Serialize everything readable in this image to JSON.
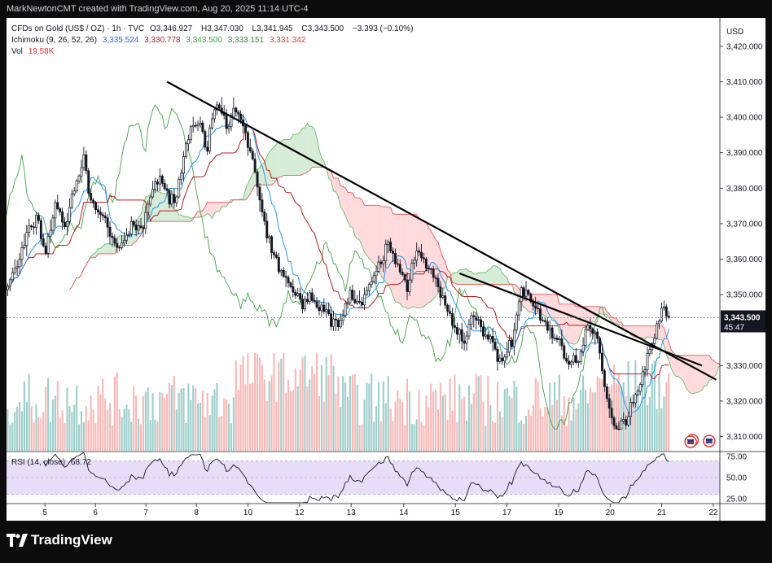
{
  "header": {
    "attribution": "MarkNewtonCMT created with TradingView.com, Aug 20, 2025 11:14 UTC-4"
  },
  "symbol": {
    "name": "CFDs on Gold (US$ / OZ) · 1h · TVC",
    "open_label": "O",
    "open": "3,346.927",
    "high_label": "H",
    "high": "3,347.030",
    "low_label": "L",
    "low": "3,341.945",
    "close_label": "C",
    "close": "3,343.500",
    "change": "−3.393 (−0.10%)"
  },
  "ichimoku": {
    "label": "Ichimoku (9, 26, 52, 26)",
    "values": [
      "3,335.524",
      "3,330.778",
      "3,343.500",
      "3,333.151",
      "3,331.342"
    ],
    "colors": [
      "#2962ff",
      "#b71c1c",
      "#43a047",
      "#388e3c",
      "#e53935"
    ]
  },
  "volume": {
    "label": "Vol",
    "value": "19.58K",
    "up_color": "#89c4bf",
    "down_color": "#f7a9a7"
  },
  "price_axis": {
    "currency": "USD",
    "ticks": [
      "3,420.000",
      "3,410.000",
      "3,400.000",
      "3,390.000",
      "3,380.000",
      "3,370.000",
      "3,360.000",
      "3,350.000",
      "3,330.000",
      "3,320.000",
      "3,310.000"
    ],
    "last_price": "3,343.500",
    "countdown": "45:47"
  },
  "rsi": {
    "label": "RSI (14, close)",
    "value": "68.72",
    "ticks": [
      "75.00",
      "50.00",
      "25.00"
    ]
  },
  "time_axis": {
    "labels": [
      "5",
      "6",
      "7",
      "8",
      "10",
      "12",
      "13",
      "14",
      "15",
      "17",
      "19",
      "20",
      "21",
      "22"
    ]
  },
  "branding": {
    "logo_text": "TradingView"
  },
  "colors": {
    "background": "#ffffff",
    "frame": "#0c0c0c",
    "candle": "#131722",
    "tenkan": "#2196f3",
    "kijun": "#b71c1c",
    "lagging": "#43a047",
    "cloud_bull": "#c8e6c9",
    "cloud_bear": "#ffcdd2",
    "trendline": "#000000",
    "rsi_band": "#e1d5f7",
    "rsi_line": "#131722"
  },
  "chart_data": {
    "type": "candlestick",
    "title": "CFDs on Gold (US$ / OZ) · 1h · TVC",
    "ylabel": "USD",
    "ylim": [
      3306,
      3428
    ],
    "x_dates": [
      "5",
      "6",
      "7",
      "8",
      "10",
      "12",
      "13",
      "14",
      "15",
      "17",
      "19",
      "20",
      "21",
      "22"
    ],
    "close_path": [
      [
        0,
        3353
      ],
      [
        4,
        3358
      ],
      [
        8,
        3366
      ],
      [
        12,
        3372
      ],
      [
        16,
        3362
      ],
      [
        20,
        3376
      ],
      [
        24,
        3368
      ],
      [
        28,
        3381
      ],
      [
        32,
        3387
      ],
      [
        36,
        3375
      ],
      [
        40,
        3372
      ],
      [
        44,
        3366
      ],
      [
        48,
        3362
      ],
      [
        52,
        3370
      ],
      [
        56,
        3367
      ],
      [
        60,
        3378
      ],
      [
        64,
        3384
      ],
      [
        68,
        3375
      ],
      [
        72,
        3382
      ],
      [
        76,
        3395
      ],
      [
        80,
        3400
      ],
      [
        84,
        3392
      ],
      [
        88,
        3404
      ],
      [
        92,
        3396
      ],
      [
        96,
        3402
      ],
      [
        100,
        3395
      ],
      [
        104,
        3385
      ],
      [
        108,
        3370
      ],
      [
        112,
        3360
      ],
      [
        116,
        3356
      ],
      [
        120,
        3350
      ],
      [
        124,
        3347
      ],
      [
        128,
        3350
      ],
      [
        132,
        3346
      ],
      [
        136,
        3342
      ],
      [
        140,
        3344
      ],
      [
        144,
        3350
      ],
      [
        148,
        3347
      ],
      [
        152,
        3351
      ],
      [
        156,
        3358
      ],
      [
        160,
        3364
      ],
      [
        164,
        3358
      ],
      [
        168,
        3352
      ],
      [
        172,
        3364
      ],
      [
        176,
        3359
      ],
      [
        180,
        3353
      ],
      [
        184,
        3347
      ],
      [
        188,
        3340
      ],
      [
        192,
        3336
      ],
      [
        196,
        3345
      ],
      [
        200,
        3340
      ],
      [
        204,
        3335
      ],
      [
        208,
        3332
      ],
      [
        212,
        3336
      ],
      [
        216,
        3352
      ],
      [
        220,
        3348
      ],
      [
        224,
        3344
      ],
      [
        228,
        3340
      ],
      [
        232,
        3336
      ],
      [
        236,
        3332
      ],
      [
        240,
        3331
      ],
      [
        244,
        3340
      ],
      [
        248,
        3338
      ],
      [
        252,
        3319
      ],
      [
        256,
        3313
      ],
      [
        260,
        3315
      ],
      [
        264,
        3322
      ],
      [
        268,
        3330
      ],
      [
        272,
        3340
      ],
      [
        276,
        3346
      ],
      [
        278,
        3343.5
      ]
    ],
    "price_range": {
      "high": 3410,
      "low": 3312,
      "last": 3343.5
    },
    "trendline": {
      "from": {
        "bar": 67,
        "price": 3410
      },
      "to": {
        "bar": 298,
        "price": 3326
      }
    },
    "trendline2": {
      "from": {
        "bar": 190,
        "price": 3356
      },
      "to": {
        "bar": 292,
        "price": 3330
      }
    },
    "rsi": {
      "ylim": [
        20,
        80
      ],
      "last": 68.72,
      "band": [
        30,
        70
      ]
    }
  }
}
